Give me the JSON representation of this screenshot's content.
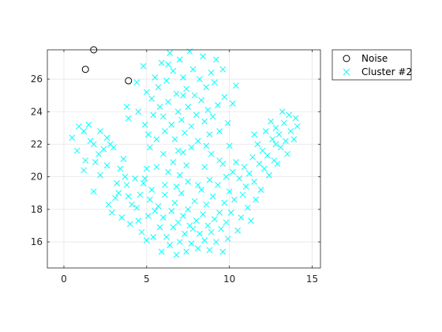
{
  "chart_data": {
    "type": "scatter",
    "title": "",
    "xlabel": "",
    "ylabel": "",
    "xlim": [
      -1,
      15.5
    ],
    "ylim": [
      14.4,
      27.8
    ],
    "xticks": [
      0,
      5,
      10,
      15
    ],
    "yticks": [
      16,
      18,
      20,
      22,
      24,
      26
    ],
    "xtick_labels": [
      "0",
      "5",
      "10",
      "15"
    ],
    "ytick_labels": [
      "16",
      "18",
      "20",
      "22",
      "24",
      "26"
    ],
    "grid": true,
    "legend": "outside-top-right",
    "series": [
      {
        "name": "Noise",
        "marker": "circle",
        "color": "#000000",
        "points": [
          [
            1.8,
            27.8
          ],
          [
            1.3,
            26.6
          ],
          [
            3.9,
            25.9
          ]
        ]
      },
      {
        "name": "Cluster #2",
        "marker": "x",
        "color": "#00ffff",
        "points": [
          [
            0.5,
            22.4
          ],
          [
            0.8,
            21.6
          ],
          [
            0.9,
            23.1
          ],
          [
            1.2,
            22.8
          ],
          [
            1.3,
            21.0
          ],
          [
            1.2,
            20.4
          ],
          [
            1.5,
            23.2
          ],
          [
            1.6,
            22.2
          ],
          [
            1.8,
            22.0
          ],
          [
            1.9,
            20.9
          ],
          [
            2.1,
            21.4
          ],
          [
            2.2,
            22.8
          ],
          [
            2.4,
            21.7
          ],
          [
            2.6,
            22.4
          ],
          [
            1.8,
            19.1
          ],
          [
            2.2,
            20.1
          ],
          [
            2.6,
            20.7
          ],
          [
            2.7,
            18.3
          ],
          [
            2.9,
            17.8
          ],
          [
            3.0,
            21.8
          ],
          [
            3.2,
            19.6
          ],
          [
            3.3,
            19.0
          ],
          [
            3.5,
            17.5
          ],
          [
            3.7,
            20.0
          ],
          [
            3.8,
            19.5
          ],
          [
            3.9,
            18.8
          ],
          [
            4.0,
            17.1
          ],
          [
            4.1,
            18.3
          ],
          [
            4.3,
            19.9
          ],
          [
            4.5,
            17.3
          ],
          [
            4.6,
            18.9
          ],
          [
            4.7,
            16.6
          ],
          [
            4.8,
            19.6
          ],
          [
            5.0,
            16.1
          ],
          [
            5.1,
            17.6
          ],
          [
            5.2,
            18.6
          ],
          [
            5.3,
            19.2
          ],
          [
            5.5,
            17.9
          ],
          [
            5.4,
            16.3
          ],
          [
            5.7,
            18.2
          ],
          [
            5.8,
            16.9
          ],
          [
            5.9,
            15.4
          ],
          [
            6.0,
            17.5
          ],
          [
            6.1,
            18.9
          ],
          [
            6.2,
            16.3
          ],
          [
            6.4,
            15.8
          ],
          [
            6.5,
            17.9
          ],
          [
            6.6,
            16.9
          ],
          [
            6.7,
            18.4
          ],
          [
            6.8,
            15.2
          ],
          [
            6.9,
            17.2
          ],
          [
            7.0,
            16.0
          ],
          [
            7.1,
            19.0
          ],
          [
            7.2,
            17.6
          ],
          [
            7.3,
            16.5
          ],
          [
            7.4,
            15.4
          ],
          [
            7.5,
            18.0
          ],
          [
            7.6,
            17.0
          ],
          [
            7.7,
            15.9
          ],
          [
            7.8,
            16.8
          ],
          [
            7.9,
            18.5
          ],
          [
            8.0,
            17.3
          ],
          [
            8.1,
            15.6
          ],
          [
            8.2,
            16.5
          ],
          [
            8.3,
            19.2
          ],
          [
            8.4,
            17.7
          ],
          [
            8.5,
            16.1
          ],
          [
            8.6,
            18.3
          ],
          [
            8.7,
            17.0
          ],
          [
            8.8,
            15.5
          ],
          [
            8.9,
            16.6
          ],
          [
            9.0,
            18.8
          ],
          [
            9.1,
            17.4
          ],
          [
            9.2,
            16.0
          ],
          [
            9.3,
            19.5
          ],
          [
            9.4,
            17.8
          ],
          [
            9.5,
            16.8
          ],
          [
            9.6,
            15.4
          ],
          [
            9.7,
            18.4
          ],
          [
            9.8,
            17.2
          ],
          [
            9.9,
            16.2
          ],
          [
            10.0,
            19.1
          ],
          [
            10.1,
            17.8
          ],
          [
            10.2,
            20.3
          ],
          [
            10.3,
            18.6
          ],
          [
            10.5,
            16.7
          ],
          [
            10.6,
            19.9
          ],
          [
            10.7,
            17.5
          ],
          [
            10.8,
            18.9
          ],
          [
            10.9,
            20.6
          ],
          [
            11.0,
            19.4
          ],
          [
            11.1,
            18.1
          ],
          [
            11.2,
            20.2
          ],
          [
            11.3,
            17.3
          ],
          [
            11.4,
            21.2
          ],
          [
            11.5,
            19.7
          ],
          [
            11.6,
            18.6
          ],
          [
            11.7,
            22.0
          ],
          [
            11.8,
            20.8
          ],
          [
            11.9,
            19.2
          ],
          [
            12.0,
            21.6
          ],
          [
            12.1,
            20.5
          ],
          [
            12.2,
            22.8
          ],
          [
            12.3,
            21.3
          ],
          [
            12.4,
            20.1
          ],
          [
            12.5,
            23.4
          ],
          [
            12.6,
            22.3
          ],
          [
            12.7,
            21.0
          ],
          [
            12.8,
            23.0
          ],
          [
            12.9,
            20.8
          ],
          [
            13.0,
            22.6
          ],
          [
            13.1,
            21.8
          ],
          [
            13.2,
            24.0
          ],
          [
            13.3,
            23.3
          ],
          [
            13.4,
            22.2
          ],
          [
            13.5,
            21.4
          ],
          [
            13.6,
            23.8
          ],
          [
            13.7,
            22.8
          ],
          [
            13.9,
            22.3
          ],
          [
            14.0,
            23.6
          ],
          [
            14.1,
            23.1
          ],
          [
            3.4,
            20.5
          ],
          [
            3.6,
            21.1
          ],
          [
            4.9,
            19.9
          ],
          [
            6.3,
            20.3
          ],
          [
            7.0,
            20.1
          ],
          [
            8.9,
            21.4
          ],
          [
            10.4,
            20.9
          ],
          [
            11.5,
            22.6
          ],
          [
            12.8,
            22.0
          ],
          [
            2.8,
            22.0
          ],
          [
            3.1,
            18.7
          ],
          [
            4.4,
            18.1
          ],
          [
            5.6,
            20.6
          ],
          [
            6.6,
            20.9
          ],
          [
            7.4,
            20.7
          ],
          [
            8.5,
            20.6
          ],
          [
            9.6,
            20.8
          ],
          [
            6.0,
            21.4
          ],
          [
            7.2,
            21.5
          ],
          [
            3.8,
            24.3
          ],
          [
            3.9,
            23.6
          ],
          [
            4.4,
            25.8
          ],
          [
            4.5,
            24.0
          ],
          [
            4.8,
            26.8
          ],
          [
            4.9,
            23.2
          ],
          [
            5.0,
            25.2
          ],
          [
            5.1,
            22.6
          ],
          [
            5.3,
            24.8
          ],
          [
            5.4,
            23.8
          ],
          [
            5.5,
            26.1
          ],
          [
            5.6,
            22.3
          ],
          [
            5.7,
            25.5
          ],
          [
            5.8,
            24.3
          ],
          [
            5.9,
            27.0
          ],
          [
            6.0,
            23.7
          ],
          [
            6.1,
            22.8
          ],
          [
            6.2,
            25.9
          ],
          [
            6.3,
            24.6
          ],
          [
            6.4,
            27.6
          ],
          [
            6.5,
            23.2
          ],
          [
            6.6,
            26.5
          ],
          [
            6.7,
            22.3
          ],
          [
            6.8,
            25.1
          ],
          [
            6.9,
            24.0
          ],
          [
            7.0,
            27.2
          ],
          [
            7.1,
            23.5
          ],
          [
            7.2,
            26.1
          ],
          [
            7.3,
            22.7
          ],
          [
            7.4,
            25.4
          ],
          [
            7.5,
            24.3
          ],
          [
            7.6,
            27.7
          ],
          [
            7.7,
            23.1
          ],
          [
            7.8,
            26.6
          ],
          [
            7.9,
            25.0
          ],
          [
            8.0,
            23.8
          ],
          [
            8.1,
            22.2
          ],
          [
            8.2,
            26.0
          ],
          [
            8.3,
            24.7
          ],
          [
            8.4,
            27.4
          ],
          [
            8.5,
            23.4
          ],
          [
            8.6,
            25.5
          ],
          [
            8.7,
            24.1
          ],
          [
            8.8,
            22.6
          ],
          [
            8.9,
            26.4
          ],
          [
            9.0,
            23.7
          ],
          [
            9.1,
            25.8
          ],
          [
            9.2,
            27.2
          ],
          [
            9.3,
            24.4
          ],
          [
            9.4,
            22.8
          ],
          [
            9.6,
            26.6
          ],
          [
            9.7,
            24.9
          ],
          [
            9.9,
            23.3
          ],
          [
            10.2,
            24.5
          ],
          [
            10.4,
            25.6
          ],
          [
            6.3,
            26.9
          ],
          [
            7.2,
            25.0
          ],
          [
            8.6,
            21.9
          ],
          [
            7.7,
            21.8
          ],
          [
            6.9,
            21.6
          ],
          [
            5.2,
            21.8
          ],
          [
            9.4,
            21.0
          ],
          [
            6.1,
            19.5
          ],
          [
            8.1,
            19.5
          ],
          [
            5.0,
            20.5
          ],
          [
            9.8,
            20.0
          ],
          [
            7.5,
            19.7
          ],
          [
            6.8,
            19.4
          ],
          [
            8.8,
            19.8
          ],
          [
            10.0,
            21.9
          ]
        ]
      }
    ]
  }
}
